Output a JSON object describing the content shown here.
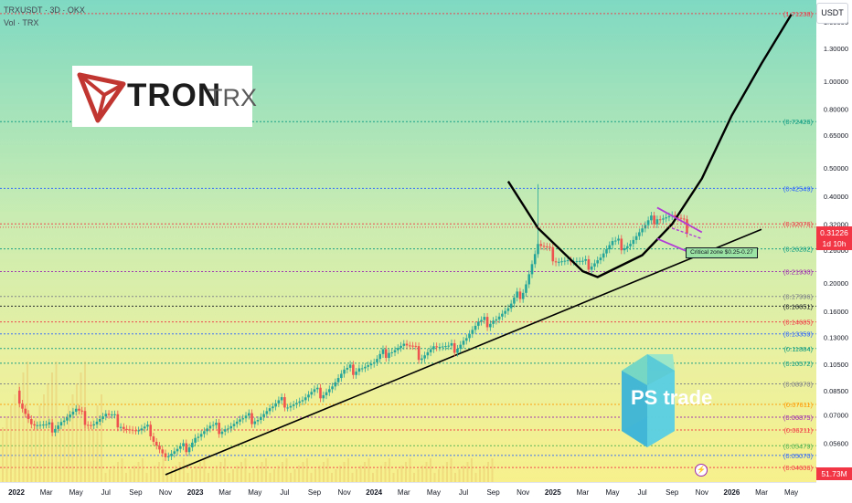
{
  "header": {
    "symbol": "TRXUSDT · 3D · OKX",
    "volume_label": "Vol · TRX"
  },
  "unit_button": "USDT",
  "logos": {
    "tron_word": "TRON",
    "trx_word": "TRX",
    "ps_word": "PS trade"
  },
  "badges": {
    "price": "0.31226",
    "countdown": "1d 10h",
    "volume": "51.73M",
    "critical_zone": "Critical zone $0.25-0.27"
  },
  "colors": {
    "logo_red": "#c23631",
    "candle_up": "#26a69a",
    "candle_down": "#ef5350",
    "curve": "#000000",
    "channel": "#b13bd6",
    "ps_logo": "#56c9d8"
  },
  "chart_data": {
    "type": "candlestick",
    "scale": "log",
    "ylim": [
      0.0435,
      1.8
    ],
    "y_ticks": [
      "1.60000",
      "1.30000",
      "1.00000",
      "0.80000",
      "0.65000",
      "0.50000",
      "0.40000",
      "0.32000",
      "0.26000",
      "0.20000",
      "0.16000",
      "0.13000",
      "0.10500",
      "0.08500",
      "0.07000",
      "0.05600"
    ],
    "y_tick_values": [
      1.6,
      1.3,
      1.0,
      0.8,
      0.65,
      0.5,
      0.4,
      0.32,
      0.26,
      0.2,
      0.16,
      0.13,
      0.105,
      0.085,
      0.07,
      0.056
    ],
    "x_ticks": [
      "2022",
      "Mar",
      "May",
      "Jul",
      "Sep",
      "Nov",
      "2023",
      "Mar",
      "May",
      "Jul",
      "Sep",
      "Nov",
      "2024",
      "Mar",
      "May",
      "Jul",
      "Sep",
      "Nov",
      "2025",
      "Mar",
      "May",
      "Jul",
      "Sep",
      "Nov",
      "2026",
      "Mar",
      "May"
    ],
    "x_tick_values": [
      "2022-01",
      "2022-03",
      "2022-05",
      "2022-07",
      "2022-09",
      "2022-11",
      "2023-01",
      "2023-03",
      "2023-05",
      "2023-07",
      "2023-09",
      "2023-11",
      "2024-01",
      "2024-03",
      "2024-05",
      "2024-07",
      "2024-09",
      "2024-11",
      "2025-01",
      "2025-03",
      "2025-05",
      "2025-07",
      "2025-09",
      "2025-11",
      "2026-01",
      "2026-03",
      "2026-05"
    ],
    "levels": [
      {
        "label": "(1.71238)",
        "value": 1.71238,
        "color": "#f23645"
      },
      {
        "label": "(0.72426)",
        "value": 0.72426,
        "color": "#089981"
      },
      {
        "label": "(0.42549)",
        "value": 0.42549,
        "color": "#2962ff"
      },
      {
        "label": "(0.32076)",
        "value": 0.32076,
        "color": "#f23645"
      },
      {
        "label": "(0.26282)",
        "value": 0.26282,
        "color": "#089981"
      },
      {
        "label": "(0.21930)",
        "value": 0.2193,
        "color": "#9c27b0"
      },
      {
        "label": "(0.17996)",
        "value": 0.17996,
        "color": "#787b86"
      },
      {
        "label": "(0.16651)",
        "value": 0.16651,
        "color": "#131722"
      },
      {
        "label": "(0.14685)",
        "value": 0.14685,
        "color": "#f23645"
      },
      {
        "label": "(0.13359)",
        "value": 0.13359,
        "color": "#2962ff"
      },
      {
        "label": "(0.11884)",
        "value": 0.11884,
        "color": "#089981"
      },
      {
        "label": "(0.10572)",
        "value": 0.10572,
        "color": "#089981"
      },
      {
        "label": "(0.08970)",
        "value": 0.0897,
        "color": "#787b86"
      },
      {
        "label": "(0.07611)",
        "value": 0.07611,
        "color": "#ff9800"
      },
      {
        "label": "(0.06875)",
        "value": 0.06875,
        "color": "#9c27b0"
      },
      {
        "label": "(0.06211)",
        "value": 0.06211,
        "color": "#f23645"
      },
      {
        "label": "(0.05479)",
        "value": 0.05479,
        "color": "#4caf50"
      },
      {
        "label": "(0.05070)",
        "value": 0.0507,
        "color": "#2962ff"
      },
      {
        "label": "(0.04606)",
        "value": 0.04606,
        "color": "#f23645"
      }
    ],
    "price_path": [
      [
        "2022-01",
        0.085
      ],
      [
        "2022-02",
        0.065
      ],
      [
        "2022-03",
        0.062
      ],
      [
        "2022-04",
        0.067
      ],
      [
        "2022-05",
        0.071
      ],
      [
        "2022-06",
        0.066
      ],
      [
        "2022-07",
        0.069
      ],
      [
        "2022-08",
        0.066
      ],
      [
        "2022-09",
        0.061
      ],
      [
        "2022-10",
        0.062
      ],
      [
        "2022-11",
        0.05
      ],
      [
        "2022-12",
        0.052
      ],
      [
        "2023-01",
        0.059
      ],
      [
        "2023-02",
        0.062
      ],
      [
        "2023-03",
        0.064
      ],
      [
        "2023-04",
        0.066
      ],
      [
        "2023-05",
        0.069
      ],
      [
        "2023-06",
        0.073
      ],
      [
        "2023-07",
        0.078
      ],
      [
        "2023-08",
        0.078
      ],
      [
        "2023-09",
        0.082
      ],
      [
        "2023-10",
        0.087
      ],
      [
        "2023-11",
        0.097
      ],
      [
        "2023-12",
        0.104
      ],
      [
        "2024-01",
        0.104
      ],
      [
        "2024-02",
        0.119
      ],
      [
        "2024-03",
        0.122
      ],
      [
        "2024-04",
        0.114
      ],
      [
        "2024-05",
        0.121
      ],
      [
        "2024-06",
        0.116
      ],
      [
        "2024-07",
        0.128
      ],
      [
        "2024-08",
        0.142
      ],
      [
        "2024-09",
        0.152
      ],
      [
        "2024-10",
        0.16
      ],
      [
        "2024-11",
        0.192
      ],
      [
        "2024-12",
        0.27
      ],
      [
        "2025-01",
        0.25
      ],
      [
        "2025-02",
        0.24
      ],
      [
        "2025-03",
        0.228
      ],
      [
        "2025-04",
        0.243
      ],
      [
        "2025-05",
        0.27
      ],
      [
        "2025-06",
        0.275
      ],
      [
        "2025-07",
        0.302
      ],
      [
        "2025-08",
        0.345
      ],
      [
        "2025-09",
        0.34
      ],
      [
        "2025-10",
        0.312
      ]
    ],
    "series": [
      {
        "values": [
          0.085,
          0.065,
          0.062,
          0.067,
          0.071,
          0.066,
          0.069,
          0.066,
          0.061,
          0.062,
          0.05,
          0.052,
          0.059,
          0.062,
          0.064,
          0.066,
          0.069,
          0.073,
          0.078,
          0.078,
          0.082,
          0.087,
          0.097,
          0.104,
          0.104,
          0.119,
          0.122,
          0.114,
          0.121,
          0.116,
          0.128,
          0.142,
          0.152,
          0.16,
          0.192,
          0.27,
          0.25,
          0.24,
          0.228,
          0.243,
          0.27,
          0.275,
          0.302,
          0.345,
          0.34,
          0.312
        ]
      }
    ],
    "current_price": 0.31226,
    "critical_zone": [
      0.25,
      0.27
    ],
    "trendline": [
      [
        "2022-11",
        0.0435
      ],
      [
        "2026-03",
        0.307
      ]
    ],
    "cup_projection": [
      [
        "2024-10",
        0.45
      ],
      [
        "2024-12",
        0.31
      ],
      [
        "2025-03",
        0.22
      ],
      [
        "2025-04",
        0.21
      ],
      [
        "2025-07",
        0.25
      ],
      [
        "2025-09",
        0.32
      ],
      [
        "2025-11",
        0.46
      ],
      [
        "2026-01",
        0.76
      ],
      [
        "2026-03",
        1.15
      ],
      [
        "2026-05",
        1.7
      ]
    ],
    "channel": {
      "upper": [
        [
          "2025-08",
          0.365
        ],
        [
          "2025-11",
          0.3
        ]
      ],
      "lower": [
        [
          "2025-08",
          0.285
        ],
        [
          "2025-11",
          0.245
        ]
      ]
    }
  }
}
